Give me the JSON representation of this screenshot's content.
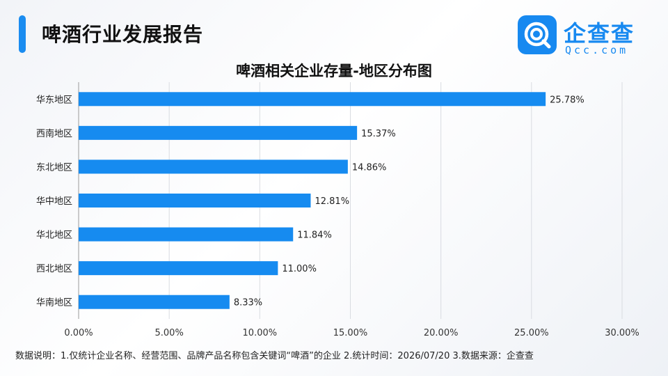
{
  "header": {
    "title": "啤酒行业发展报告"
  },
  "brand": {
    "name": "企查查",
    "domain": "Qcc.com",
    "color": "#1789f0"
  },
  "chart_data": {
    "type": "bar",
    "orientation": "horizontal",
    "title": "啤酒相关企业存量-地区分布图",
    "categories": [
      "华东地区",
      "西南地区",
      "东北地区",
      "华中地区",
      "华北地区",
      "西北地区",
      "华南地区"
    ],
    "values": [
      25.78,
      15.37,
      14.86,
      12.81,
      11.84,
      11.0,
      8.33
    ],
    "value_labels": [
      "25.78%",
      "15.37%",
      "14.86%",
      "12.81%",
      "11.84%",
      "11.00%",
      "8.33%"
    ],
    "xlim": [
      0,
      30
    ],
    "xticks": [
      0,
      5,
      10,
      15,
      20,
      25,
      30
    ],
    "xtick_labels": [
      "0.00%",
      "5.00%",
      "10.00%",
      "15.00%",
      "20.00%",
      "25.00%",
      "30.00%"
    ],
    "grid": "vertical",
    "bar_color": "#168bf0"
  },
  "footnote": "数据说明：1.仅统计企业名称、经营范围、品牌产品名称包含关键词“啤酒”的企业    2.统计时间：2026/07/20    3.数据来源：企查查"
}
